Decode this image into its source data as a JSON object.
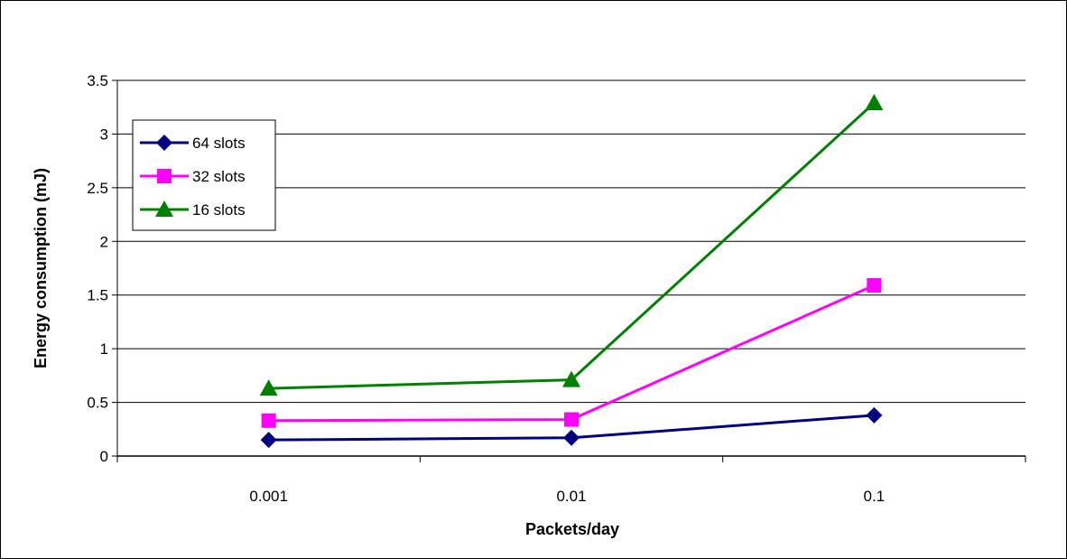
{
  "chart_data": {
    "type": "line",
    "categories": [
      "0.001",
      "0.01",
      "0.1"
    ],
    "xlabel": "Packets/day",
    "ylabel": "Energy consumption (mJ)",
    "ylim": [
      0,
      3.5
    ],
    "yticks": [
      "0",
      "0.5",
      "1",
      "1.5",
      "2",
      "2.5",
      "3",
      "3.5"
    ],
    "grid": true,
    "legend_position": "top-left",
    "series": [
      {
        "name": "64 slots",
        "color": "#000080",
        "marker": "diamond",
        "values": [
          0.15,
          0.17,
          0.38
        ]
      },
      {
        "name": "32 slots",
        "color": "#ff00ff",
        "marker": "square",
        "values": [
          0.33,
          0.34,
          1.59
        ]
      },
      {
        "name": "16 slots",
        "color": "#008000",
        "marker": "triangle",
        "values": [
          0.63,
          0.71,
          3.29
        ]
      }
    ]
  }
}
